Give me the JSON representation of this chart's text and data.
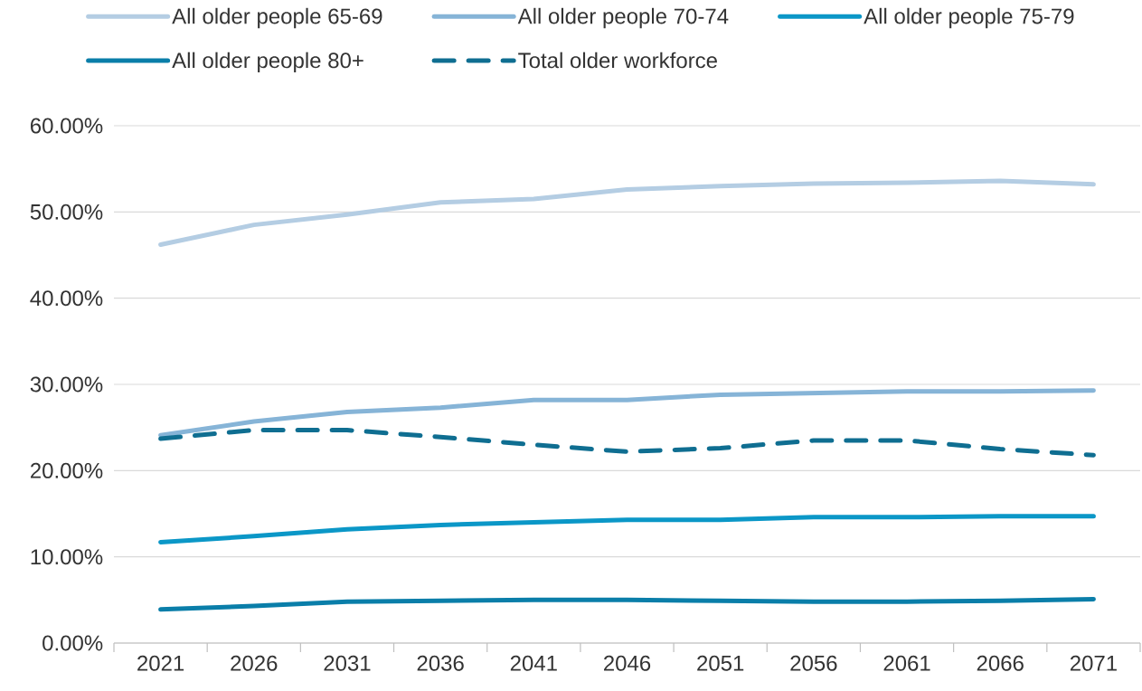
{
  "chart_data": {
    "type": "line",
    "categories": [
      "2021",
      "2026",
      "2031",
      "2036",
      "2041",
      "2046",
      "2051",
      "2056",
      "2061",
      "2066",
      "2071"
    ],
    "series": [
      {
        "name": "All older people 65-69",
        "color": "#b4cde3",
        "values": [
          46.2,
          48.5,
          49.7,
          51.1,
          51.5,
          52.6,
          53.0,
          53.3,
          53.4,
          53.6,
          53.2
        ]
      },
      {
        "name": "All older people 70-74",
        "color": "#86b4d7",
        "values": [
          24.1,
          25.7,
          26.8,
          27.3,
          28.2,
          28.2,
          28.8,
          29.0,
          29.2,
          29.2,
          29.3
        ]
      },
      {
        "name": "All older people 75-79",
        "color": "#0b97c7",
        "values": [
          11.7,
          12.4,
          13.2,
          13.7,
          14.0,
          14.3,
          14.3,
          14.6,
          14.6,
          14.7,
          14.7
        ]
      },
      {
        "name": "All older people 80+",
        "color": "#0a7ea9",
        "values": [
          3.9,
          4.3,
          4.8,
          4.9,
          5.0,
          5.0,
          4.9,
          4.8,
          4.8,
          4.9,
          5.1
        ]
      },
      {
        "name": "Total older workforce",
        "color": "#0f6e91",
        "line_style": "dashed",
        "values": [
          23.7,
          24.7,
          24.7,
          23.9,
          23.0,
          22.2,
          22.6,
          23.5,
          23.5,
          22.5,
          21.8
        ]
      }
    ],
    "ylim": [
      0,
      60
    ],
    "yticks": [
      {
        "value": 0,
        "label": "0.00%"
      },
      {
        "value": 10,
        "label": "10.00%"
      },
      {
        "value": 20,
        "label": "20.00%"
      },
      {
        "value": 30,
        "label": "30.00%"
      },
      {
        "value": 40,
        "label": "40.00%"
      },
      {
        "value": 50,
        "label": "50.00%"
      },
      {
        "value": 60,
        "label": "60.00%"
      }
    ],
    "grid": "y",
    "legend": "top",
    "marker": "none",
    "line_style": "solid"
  }
}
